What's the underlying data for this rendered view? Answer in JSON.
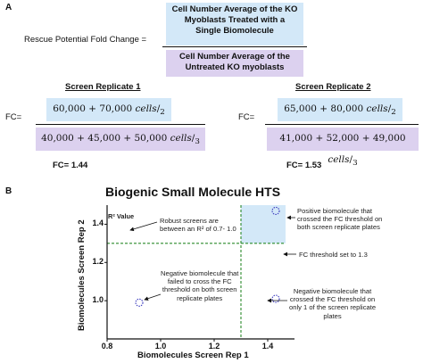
{
  "panel_a": {
    "label": "A",
    "rescue_label": "Rescue Potential Fold Change =",
    "numerator": "Cell Number Average of the KO Myoblasts Treated with a Single Biomolecule",
    "numerator_lines": [
      "Cell Number Average of the KO",
      "Myoblasts Treated with a",
      "Single Biomolecule"
    ],
    "denominator_lines": [
      "Cell Number Average of the",
      "Untreated KO myoblasts"
    ],
    "replicate1": {
      "title": "Screen Replicate 1",
      "fc_label": "FC=",
      "numerator_expr": "60,000 + 70,000 cells/2",
      "numerator_a": "60,000 + 70,000 ",
      "numerator_unit": "cells",
      "numerator_div": "2",
      "denominator_a": "40,000 + 45,000 + 50,000 ",
      "denominator_unit": "cells",
      "denominator_div": "3",
      "result": "FC= 1.44"
    },
    "replicate2": {
      "title": "Screen Replicate 2",
      "fc_label": "FC=",
      "numerator_a": "65,000 + 80,000 ",
      "numerator_unit": "cells",
      "numerator_div": "2",
      "denominator_a": "41,000 + 52,000 + 49,000 ",
      "denominator_unit": "cells",
      "denominator_div": "3",
      "result": "FC= 1.53"
    }
  },
  "panel_b": {
    "label": "B",
    "colors": {
      "threshold": "#2a8a2a",
      "highlight": "#d3e8f8",
      "point": "#3b3bbd"
    },
    "annotations": {
      "r2_title": "R² Value",
      "robust": [
        "Robust screens are",
        "between an R² of 0.7- 1.0"
      ],
      "positive": [
        "Positive biomolecule that",
        "crossed the FC threshold on",
        "both screen replicate plates"
      ],
      "threshold": "FC threshold set to 1.3",
      "neg_both": [
        "Negative biomolecule that",
        "failed to cross the FC",
        "threshold on both screen",
        "replicate plates"
      ],
      "neg_one": [
        "Negative biomolecule that",
        "crossed the FC threshold on",
        "only 1 of the screen replicate",
        "plates"
      ]
    }
  },
  "chart_data": {
    "type": "scatter",
    "title": "Biogenic Small Molecule HTS",
    "xlabel": "Biomolecules Screen Rep 1",
    "ylabel": "Biomolecules Screen Rep 2",
    "xlim": [
      0.8,
      1.5
    ],
    "ylim": [
      0.8,
      1.5
    ],
    "xticks": [
      "0.8",
      "1.0",
      "1.2",
      "1.4"
    ],
    "yticks": [
      "1.4",
      "1.2",
      "1.0"
    ],
    "xtick_values": [
      0.8,
      1.0,
      1.2,
      1.4
    ],
    "ytick_values": [
      1.4,
      1.2,
      1.0
    ],
    "threshold": 1.3,
    "points": [
      {
        "x": 0.92,
        "y": 0.99
      },
      {
        "x": 1.43,
        "y": 1.47
      },
      {
        "x": 1.43,
        "y": 1.01
      }
    ]
  }
}
